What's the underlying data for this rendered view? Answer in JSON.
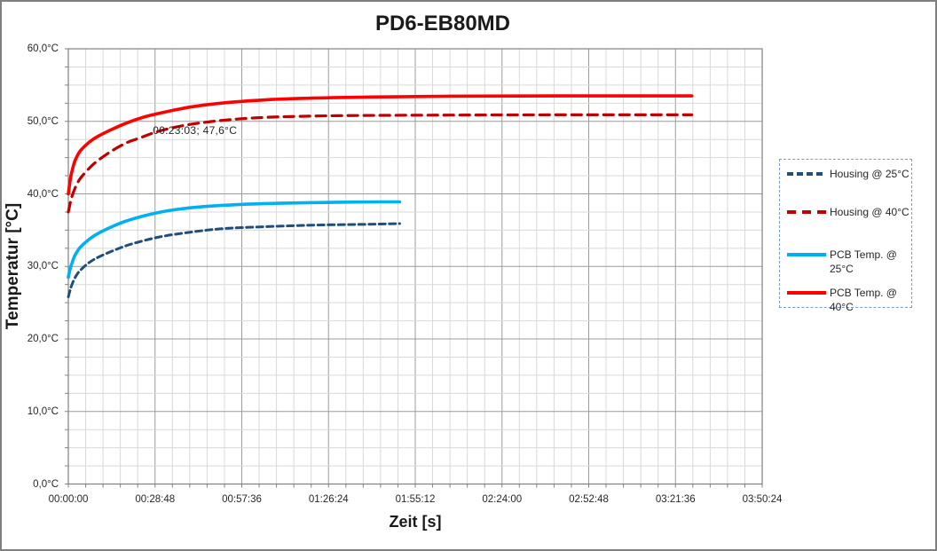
{
  "title": "PD6-EB80MD",
  "axes": {
    "x": {
      "title": "Zeit [s]",
      "tick_labels": [
        "00:00:00",
        "00:28:48",
        "00:57:36",
        "01:26:24",
        "01:55:12",
        "02:24:00",
        "02:52:48",
        "03:21:36",
        "03:50:24"
      ]
    },
    "y": {
      "title": "Temperatur [°C]",
      "tick_labels": [
        "60,0°C",
        "50,0°C",
        "40,0°C",
        "30,0°C",
        "20,0°C",
        "10,0°C",
        "0,0°C"
      ]
    }
  },
  "annotation": {
    "text": "00:23:03; 47,6°C",
    "t_seconds": 1383,
    "value_c": 47.6
  },
  "colors": {
    "red": "#FF0000",
    "dark_red": "#C00000",
    "light_blue": "#00B0F0",
    "dark_blue": "#1F4E79",
    "grid_minor": "#D9D9D9",
    "grid_major": "#9B9B9B",
    "plot_border": "#808080",
    "legend_border": "#7A9CC6",
    "text": "#262626"
  },
  "legend": {
    "items": [
      {
        "label": "Housing @ 25°C",
        "color": "#1F4E79",
        "style": "dashed"
      },
      {
        "label": "Housing @ 40°C",
        "color": "#C00000",
        "style": "dashed"
      },
      {
        "label": "PCB Temp. @ 25°C",
        "color": "#00B0F0",
        "style": "solid"
      },
      {
        "label": "PCB Temp. @ 40°C",
        "color": "#FF0000",
        "style": "solid"
      }
    ]
  },
  "chart_data": {
    "type": "line",
    "title": "PD6-EB80MD",
    "xlabel": "Zeit [s]",
    "ylabel": "Temperatur [°C]",
    "xlim_seconds": [
      0,
      13824
    ],
    "ylim": [
      0,
      60
    ],
    "x_major_step_seconds": 1728,
    "x_minor_per_major": 5,
    "y_major_step": 10,
    "y_minor_step": 2.5,
    "grid": true,
    "legend_position": "right",
    "annotation": "00:23:03; 47,6°C",
    "series": [
      {
        "name": "Housing @ 25°C",
        "color": "#1F4E79",
        "style": "dashed",
        "width": 3,
        "points": [
          [
            0,
            25.8
          ],
          [
            30,
            26.6
          ],
          [
            60,
            27.3
          ],
          [
            120,
            28.3
          ],
          [
            180,
            29.0
          ],
          [
            240,
            29.5
          ],
          [
            420,
            30.6
          ],
          [
            600,
            31.3
          ],
          [
            900,
            32.2
          ],
          [
            1200,
            33.0
          ],
          [
            1800,
            34.1
          ],
          [
            2400,
            34.7
          ],
          [
            3000,
            35.2
          ],
          [
            3600,
            35.4
          ],
          [
            4800,
            35.7
          ],
          [
            6000,
            35.8
          ],
          [
            6600,
            35.9
          ]
        ]
      },
      {
        "name": "Housing @ 40°C",
        "color": "#C00000",
        "style": "dashed",
        "width": 3.2,
        "points": [
          [
            0,
            37.5
          ],
          [
            30,
            38.5
          ],
          [
            60,
            39.4
          ],
          [
            120,
            40.6
          ],
          [
            180,
            41.5
          ],
          [
            240,
            42.2
          ],
          [
            420,
            43.6
          ],
          [
            600,
            44.7
          ],
          [
            900,
            46.1
          ],
          [
            1200,
            47.2
          ],
          [
            1383,
            47.6
          ],
          [
            1800,
            48.7
          ],
          [
            2400,
            49.6
          ],
          [
            3000,
            50.1
          ],
          [
            3600,
            50.45
          ],
          [
            4320,
            50.66
          ],
          [
            5400,
            50.8
          ],
          [
            7200,
            50.85
          ],
          [
            9000,
            50.9
          ],
          [
            10800,
            50.9
          ],
          [
            12420,
            50.9
          ]
        ]
      },
      {
        "name": "PCB Temp. @ 25°C",
        "color": "#00B0F0",
        "style": "solid",
        "width": 3.6,
        "points": [
          [
            0,
            28.5
          ],
          [
            30,
            29.5
          ],
          [
            60,
            30.2
          ],
          [
            120,
            31.4
          ],
          [
            180,
            32.1
          ],
          [
            240,
            32.7
          ],
          [
            420,
            33.8
          ],
          [
            600,
            34.6
          ],
          [
            900,
            35.6
          ],
          [
            1200,
            36.4
          ],
          [
            1800,
            37.5
          ],
          [
            2400,
            38.1
          ],
          [
            3000,
            38.4
          ],
          [
            3600,
            38.6
          ],
          [
            4800,
            38.8
          ],
          [
            6000,
            38.9
          ],
          [
            6600,
            38.9
          ]
        ]
      },
      {
        "name": "PCB Temp. @ 40°C",
        "color": "#FF0000",
        "style": "solid",
        "width": 3.6,
        "points": [
          [
            0,
            40.0
          ],
          [
            30,
            41.6
          ],
          [
            60,
            42.8
          ],
          [
            120,
            44.4
          ],
          [
            180,
            45.3
          ],
          [
            240,
            46.0
          ],
          [
            420,
            47.2
          ],
          [
            600,
            48.0
          ],
          [
            900,
            49.0
          ],
          [
            1200,
            49.9
          ],
          [
            1500,
            50.6
          ],
          [
            1800,
            51.1
          ],
          [
            2400,
            52.0
          ],
          [
            3000,
            52.5
          ],
          [
            3600,
            52.85
          ],
          [
            4320,
            53.1
          ],
          [
            5400,
            53.3
          ],
          [
            7200,
            53.45
          ],
          [
            9000,
            53.5
          ],
          [
            10800,
            53.5
          ],
          [
            12420,
            53.5
          ]
        ]
      }
    ]
  }
}
